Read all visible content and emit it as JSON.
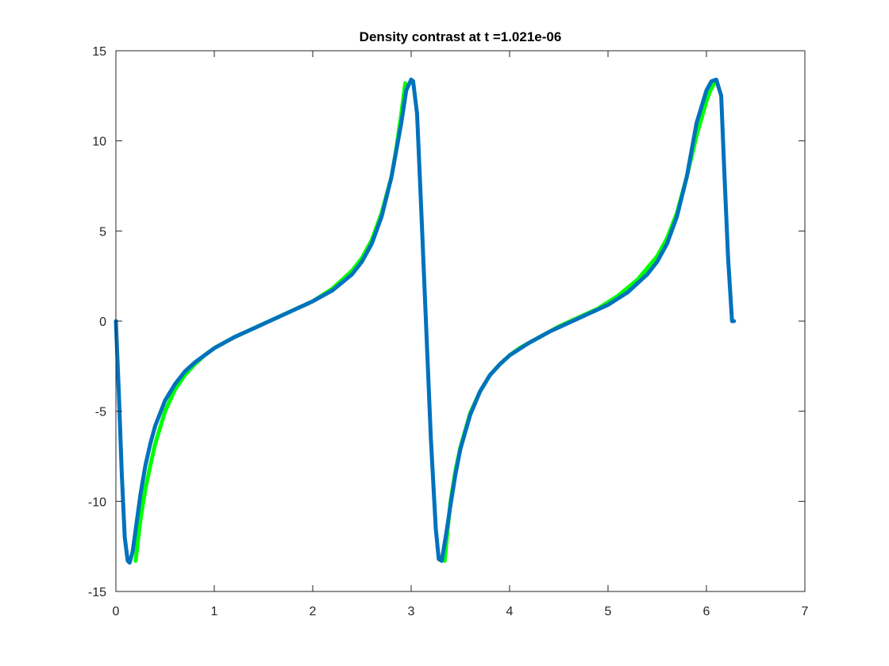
{
  "chart_data": {
    "type": "line",
    "title": "Density contrast at t =1.021e-06",
    "xlabel": "",
    "ylabel": "",
    "xlim": [
      0,
      7
    ],
    "ylim": [
      -15,
      15
    ],
    "x_ticks": [
      0,
      1,
      2,
      3,
      4,
      5,
      6,
      7
    ],
    "x_tick_labels": [
      "0",
      "1",
      "2",
      "3",
      "4",
      "5",
      "6",
      "7"
    ],
    "y_ticks": [
      -15,
      -10,
      -5,
      0,
      5,
      10,
      15
    ],
    "y_tick_labels": [
      "-15",
      "-10",
      "-5",
      "0",
      "5",
      "10",
      "15"
    ],
    "grid": false,
    "legend": "none",
    "series": [
      {
        "color": "#00ff00",
        "x": [
          0.2,
          0.25,
          0.3,
          0.35,
          0.4,
          0.5,
          0.6,
          0.7,
          0.8,
          0.9,
          1.0,
          1.2,
          1.4,
          1.6,
          1.8,
          2.0,
          2.2,
          2.4,
          2.5,
          2.6,
          2.7,
          2.8,
          2.85,
          2.9,
          2.94,
          3.34,
          3.37,
          3.4,
          3.45,
          3.5,
          3.6,
          3.7,
          3.8,
          3.9,
          4.0,
          4.1,
          4.3,
          4.5,
          4.7,
          4.9,
          5.1,
          5.3,
          5.5,
          5.6,
          5.7,
          5.8,
          5.9,
          6.0,
          6.04,
          6.08
        ],
        "y": [
          -13.3,
          -11.0,
          -9.3,
          -8.0,
          -6.8,
          -5.0,
          -3.8,
          -3.0,
          -2.4,
          -1.9,
          -1.5,
          -0.9,
          -0.4,
          0.1,
          0.6,
          1.1,
          1.8,
          2.8,
          3.5,
          4.5,
          6.0,
          8.0,
          9.6,
          11.5,
          13.2,
          -13.3,
          -11.6,
          -10.0,
          -8.3,
          -7.0,
          -5.1,
          -3.9,
          -3.0,
          -2.4,
          -1.9,
          -1.5,
          -0.9,
          -0.3,
          0.2,
          0.7,
          1.4,
          2.3,
          3.6,
          4.6,
          6.0,
          8.0,
          10.3,
          12.2,
          12.8,
          13.2
        ],
        "break_after_index": 24
      },
      {
        "color": "#0072bd",
        "x": [
          0.0,
          0.03,
          0.06,
          0.09,
          0.12,
          0.14,
          0.17,
          0.2,
          0.25,
          0.3,
          0.35,
          0.4,
          0.5,
          0.6,
          0.7,
          0.8,
          0.9,
          1.0,
          1.2,
          1.4,
          1.6,
          1.8,
          2.0,
          2.2,
          2.4,
          2.5,
          2.6,
          2.7,
          2.8,
          2.9,
          2.95,
          3.0,
          3.02,
          3.06,
          3.1,
          3.15,
          3.2,
          3.25,
          3.28,
          3.31,
          3.35,
          3.4,
          3.45,
          3.5,
          3.6,
          3.7,
          3.8,
          3.9,
          4.0,
          4.2,
          4.4,
          4.6,
          4.8,
          5.0,
          5.2,
          5.4,
          5.5,
          5.6,
          5.7,
          5.8,
          5.9,
          6.0,
          6.05,
          6.1,
          6.15,
          6.18,
          6.22,
          6.26,
          6.28
        ],
        "y": [
          0.0,
          -4.0,
          -8.5,
          -12.0,
          -13.3,
          -13.4,
          -12.8,
          -11.6,
          -9.6,
          -8.0,
          -6.8,
          -5.8,
          -4.4,
          -3.5,
          -2.8,
          -2.3,
          -1.9,
          -1.5,
          -0.9,
          -0.4,
          0.1,
          0.6,
          1.1,
          1.7,
          2.6,
          3.3,
          4.3,
          5.8,
          8.0,
          11.0,
          12.8,
          13.4,
          13.3,
          11.5,
          6.5,
          0.0,
          -6.5,
          -11.5,
          -13.2,
          -13.3,
          -12.0,
          -10.2,
          -8.5,
          -7.1,
          -5.2,
          -3.9,
          -3.0,
          -2.4,
          -1.9,
          -1.2,
          -0.6,
          -0.1,
          0.4,
          0.9,
          1.6,
          2.6,
          3.3,
          4.3,
          5.8,
          8.0,
          11.0,
          12.8,
          13.3,
          13.4,
          12.5,
          8.5,
          3.5,
          0.0,
          0.0
        ]
      }
    ]
  }
}
